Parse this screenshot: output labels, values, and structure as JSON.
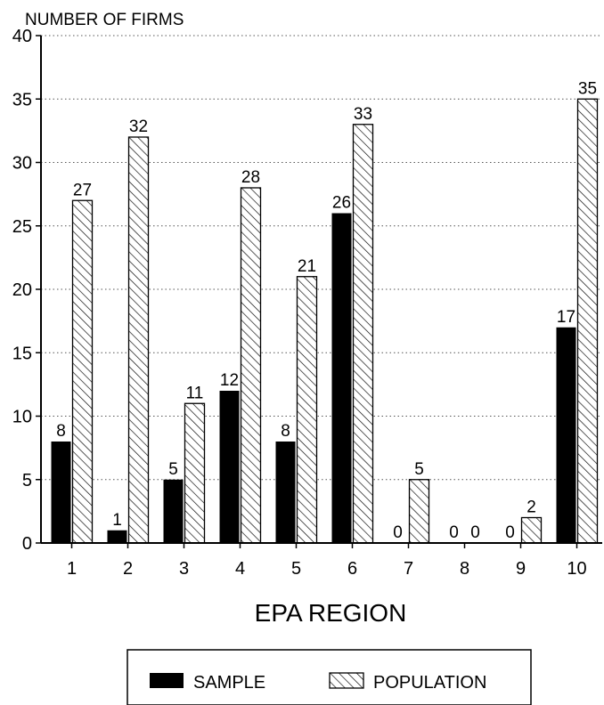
{
  "chart_data": {
    "type": "bar",
    "ylabel": "NUMBER OF FIRMS",
    "xlabel": "EPA REGION",
    "categories": [
      "1",
      "2",
      "3",
      "4",
      "5",
      "6",
      "7",
      "8",
      "9",
      "10"
    ],
    "series": [
      {
        "name": "SAMPLE",
        "values": [
          8,
          1,
          5,
          12,
          8,
          26,
          0,
          0,
          0,
          17
        ],
        "labels": [
          "8",
          "1",
          "5",
          "12",
          "8",
          "26",
          "0",
          "0",
          "0",
          "17"
        ],
        "color": "#000000"
      },
      {
        "name": "POPULATION",
        "values": [
          27,
          32,
          11,
          28,
          21,
          33,
          5,
          0,
          2,
          35
        ],
        "labels": [
          "27",
          "32",
          "11",
          "28",
          "21",
          "33",
          "5",
          "0",
          "2",
          "35"
        ],
        "color": "#ffffff",
        "pattern": "diagonal-hatch"
      }
    ],
    "y_ticks": [
      "0",
      "5",
      "10",
      "15",
      "20",
      "25",
      "30",
      "35",
      "40"
    ],
    "ylim": [
      0,
      40
    ],
    "grid": "horizontal-dotted",
    "legend": "bottom"
  }
}
